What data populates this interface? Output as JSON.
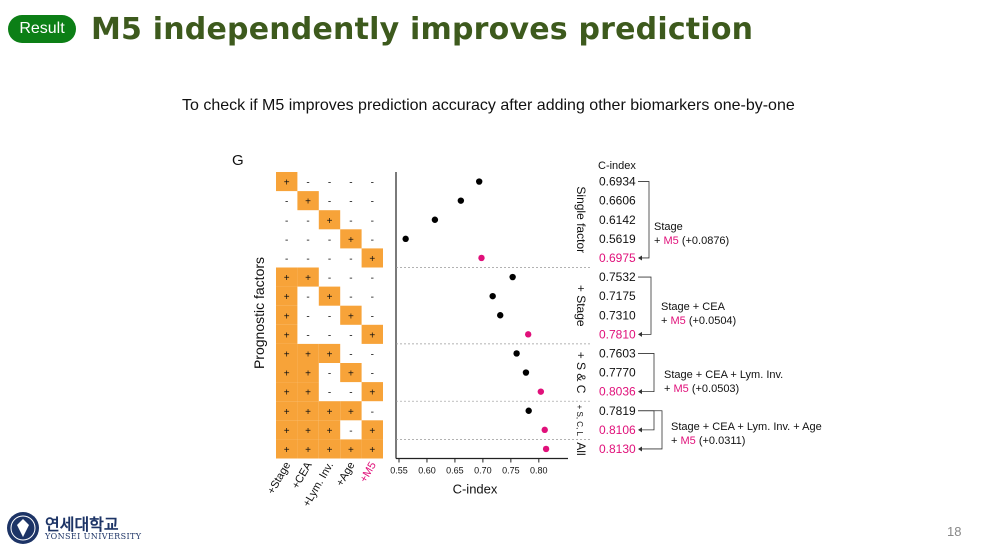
{
  "badge": "Result",
  "title": "M5 independently improves prediction",
  "subtitle": "To check if M5 improves prediction accuracy after adding other biomarkers one-by-one",
  "logo": {
    "korean": "연세대학교",
    "english": "YONSEI UNIVERSITY"
  },
  "page_number": "18",
  "colors": {
    "title": "#3d5a1d",
    "badge": "#0c7f16",
    "cell_fill": "#f7a339",
    "highlight": "#e0107a",
    "point": "#000000",
    "logo": "#1d3466"
  },
  "chart_data": {
    "type": "scatter",
    "panel_label": "G",
    "xlabel": "C-index",
    "ylabel": "Prognostic factors",
    "xlim": [
      0.55,
      0.82
    ],
    "xticks": [
      "0.55",
      "0.60",
      "0.65",
      "0.70",
      "0.75",
      "0.80"
    ],
    "grid_columns": [
      "+Stage",
      "+CEA",
      "+Lym. Inv.",
      "+Age",
      "+M5"
    ],
    "cindex_header": "C-index",
    "rows": [
      {
        "cells": [
          "+",
          "-",
          "-",
          "-",
          "-"
        ],
        "cindex": 0.6934,
        "label": "0.6934",
        "m5": false
      },
      {
        "cells": [
          "-",
          "+",
          "-",
          "-",
          "-"
        ],
        "cindex": 0.6606,
        "label": "0.6606",
        "m5": false
      },
      {
        "cells": [
          "-",
          "-",
          "+",
          "-",
          "-"
        ],
        "cindex": 0.6142,
        "label": "0.6142",
        "m5": false
      },
      {
        "cells": [
          "-",
          "-",
          "-",
          "+",
          "-"
        ],
        "cindex": 0.5619,
        "label": "0.5619",
        "m5": false
      },
      {
        "cells": [
          "-",
          "-",
          "-",
          "-",
          "+"
        ],
        "cindex": 0.6975,
        "label": "0.6975",
        "m5": true
      },
      {
        "cells": [
          "+",
          "+",
          "-",
          "-",
          "-"
        ],
        "cindex": 0.7532,
        "label": "0.7532",
        "m5": false
      },
      {
        "cells": [
          "+",
          "-",
          "+",
          "-",
          "-"
        ],
        "cindex": 0.7175,
        "label": "0.7175",
        "m5": false
      },
      {
        "cells": [
          "+",
          "-",
          "-",
          "+",
          "-"
        ],
        "cindex": 0.731,
        "label": "0.7310",
        "m5": false
      },
      {
        "cells": [
          "+",
          "-",
          "-",
          "-",
          "+"
        ],
        "cindex": 0.781,
        "label": "0.7810",
        "m5": true
      },
      {
        "cells": [
          "+",
          "+",
          "+",
          "-",
          "-"
        ],
        "cindex": 0.7603,
        "label": "0.7603",
        "m5": false
      },
      {
        "cells": [
          "+",
          "+",
          "-",
          "+",
          "-"
        ],
        "cindex": 0.777,
        "label": "0.7770",
        "m5": false
      },
      {
        "cells": [
          "+",
          "+",
          "-",
          "-",
          "+"
        ],
        "cindex": 0.8036,
        "label": "0.8036",
        "m5": true
      },
      {
        "cells": [
          "+",
          "+",
          "+",
          "+",
          "-"
        ],
        "cindex": 0.7819,
        "label": "0.7819",
        "m5": false
      },
      {
        "cells": [
          "+",
          "+",
          "+",
          "-",
          "+"
        ],
        "cindex": 0.8106,
        "label": "0.8106",
        "m5": true
      },
      {
        "cells": [
          "+",
          "+",
          "+",
          "+",
          "+"
        ],
        "cindex": 0.813,
        "label": "0.8130",
        "m5": true
      }
    ],
    "groups": [
      {
        "label": "Single factor",
        "rows": [
          0,
          4
        ]
      },
      {
        "label": "+ Stage",
        "rows": [
          5,
          8
        ]
      },
      {
        "label": "+ S & C",
        "rows": [
          9,
          11
        ]
      },
      {
        "label": "+ S, C, L",
        "rows": [
          12,
          13
        ]
      },
      {
        "label": "All",
        "rows": [
          14,
          14
        ]
      }
    ],
    "annotations": [
      {
        "text": "Stage",
        "delta": "+ M5 (+0.0876)",
        "from": 0,
        "to": 4
      },
      {
        "text": "Stage + CEA",
        "delta": "+ M5 (+0.0504)",
        "from": 5,
        "to": 8
      },
      {
        "text": "Stage + CEA + Lym. Inv.",
        "delta": "+ M5 (+0.0503)",
        "from": 9,
        "to": 11
      },
      {
        "text": "Stage + CEA + Lym. Inv. + Age",
        "delta": "+ M5 (+0.0311)",
        "from": 12,
        "to": 13
      },
      {
        "text": "",
        "delta": "",
        "from": 12,
        "to": 14
      }
    ]
  }
}
